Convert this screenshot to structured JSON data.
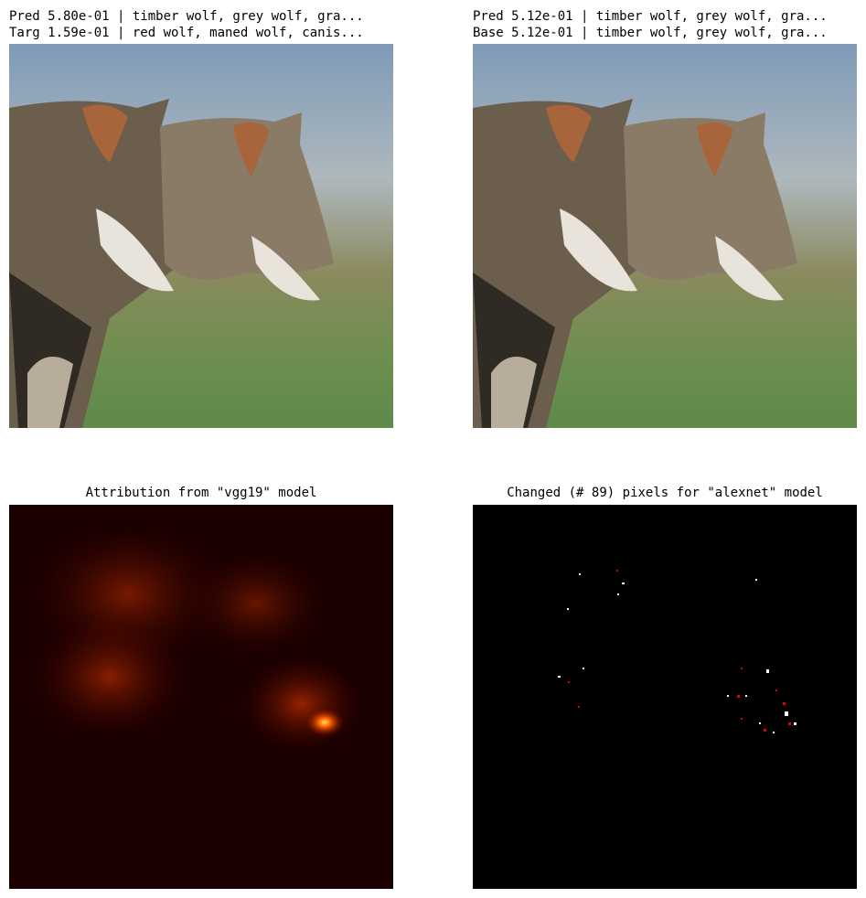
{
  "panels": [
    {
      "title_lines": [
        "Pred 5.80e-01 | timber wolf, grey wolf, gra...",
        "Targ 1.59e-01 | red wolf, maned wolf, canis..."
      ]
    },
    {
      "title_lines": [
        "Pred 5.12e-01 | timber wolf, grey wolf, gra...",
        "Base 5.12e-01 | timber wolf, grey wolf, gra..."
      ]
    },
    {
      "title": "Attribution from \"vgg19\" model"
    },
    {
      "title": "Changed (# 89) pixels for \"alexnet\" model"
    }
  ]
}
